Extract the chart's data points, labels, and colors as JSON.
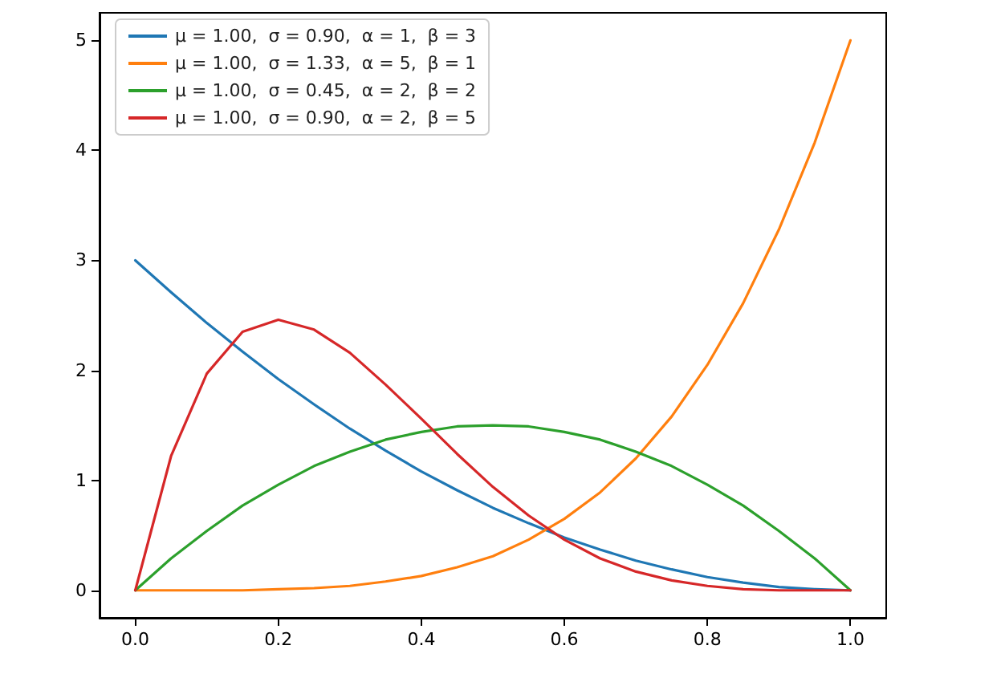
{
  "chart_data": {
    "type": "line",
    "x": [
      0,
      0.05,
      0.1,
      0.15,
      0.2,
      0.25,
      0.3,
      0.35,
      0.4,
      0.45,
      0.5,
      0.55,
      0.6,
      0.65,
      0.7,
      0.75,
      0.8,
      0.85,
      0.9,
      0.95,
      1
    ],
    "series": [
      {
        "name": "μ = 1.00,  σ = 0.90,  α = 1,  β = 3",
        "color": "#1f77b4",
        "values": [
          3,
          2.71,
          2.43,
          2.17,
          1.92,
          1.69,
          1.47,
          1.27,
          1.08,
          0.91,
          0.75,
          0.61,
          0.48,
          0.37,
          0.27,
          0.19,
          0.12,
          0.07,
          0.03,
          0.01,
          0
        ]
      },
      {
        "name": "μ = 1.00,  σ = 1.33,  α = 5,  β = 1",
        "color": "#ff7f0e",
        "values": [
          0,
          0,
          0,
          0,
          0.01,
          0.02,
          0.04,
          0.08,
          0.13,
          0.21,
          0.31,
          0.46,
          0.65,
          0.89,
          1.2,
          1.58,
          2.05,
          2.61,
          3.28,
          4.07,
          5
        ]
      },
      {
        "name": "μ = 1.00,  σ = 0.45,  α = 2,  β = 2",
        "color": "#2ca02c",
        "values": [
          0,
          0.29,
          0.54,
          0.77,
          0.96,
          1.13,
          1.26,
          1.37,
          1.44,
          1.49,
          1.5,
          1.49,
          1.44,
          1.37,
          1.26,
          1.13,
          0.96,
          0.77,
          0.54,
          0.29,
          0
        ]
      },
      {
        "name": "μ = 1.00,  σ = 0.90,  α = 2,  β = 5",
        "color": "#d62728",
        "values": [
          0,
          1.22,
          1.97,
          2.35,
          2.46,
          2.37,
          2.16,
          1.87,
          1.56,
          1.24,
          0.94,
          0.68,
          0.46,
          0.29,
          0.17,
          0.09,
          0.04,
          0.01,
          0,
          0,
          0
        ]
      }
    ],
    "xlim": [
      -0.05,
      1.05
    ],
    "xticks": [
      {
        "value": 0,
        "label": "0.0"
      },
      {
        "value": 0.2,
        "label": "0.2"
      },
      {
        "value": 0.4,
        "label": "0.4"
      },
      {
        "value": 0.6,
        "label": "0.6"
      },
      {
        "value": 0.8,
        "label": "0.8"
      },
      {
        "value": 1,
        "label": "1.0"
      }
    ],
    "ylim": [
      -0.25,
      5.25
    ],
    "yticks": [
      0,
      1,
      2,
      3,
      4,
      5
    ],
    "grid": false,
    "legend": "top left",
    "marker": "none",
    "line_style": "solid"
  }
}
